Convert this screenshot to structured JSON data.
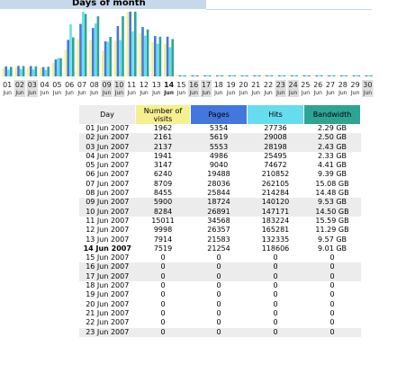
{
  "header": {
    "title": "Days of month"
  },
  "chart_data": {
    "type": "bar",
    "title": "Days of month",
    "series": [
      {
        "name": "Number of visits",
        "color": "#f4f090",
        "values": [
          1962,
          2161,
          2137,
          1941,
          3147,
          6240,
          8709,
          8455,
          5900,
          8284,
          15011,
          9998,
          7914,
          7519,
          0,
          0,
          0,
          0,
          0,
          0,
          0,
          0,
          0,
          0,
          0,
          0,
          0,
          0,
          0,
          0
        ]
      },
      {
        "name": "Pages",
        "color": "#4477dd",
        "values": [
          5354,
          5619,
          5553,
          4986,
          9040,
          19488,
          28036,
          25844,
          18724,
          26891,
          34568,
          26357,
          21583,
          21254,
          0,
          0,
          0,
          0,
          0,
          0,
          0,
          0,
          0,
          0,
          0,
          0,
          0,
          0,
          0,
          0
        ]
      },
      {
        "name": "Hits",
        "color": "#66ddee",
        "values": [
          27736,
          29008,
          28198,
          25495,
          74672,
          210852,
          262105,
          214284,
          140120,
          147171,
          183224,
          165281,
          132335,
          118606,
          0,
          0,
          0,
          0,
          0,
          0,
          0,
          0,
          0,
          0,
          0,
          0,
          0,
          0,
          0,
          0
        ]
      },
      {
        "name": "Bandwidth",
        "color": "#2ea495",
        "values": [
          2.29,
          2.5,
          2.43,
          2.33,
          4.41,
          9.39,
          15.08,
          14.48,
          9.53,
          14.5,
          15.59,
          11.29,
          9.57,
          9.01,
          0,
          0,
          0,
          0,
          0,
          0,
          0,
          0,
          0,
          0,
          0,
          0,
          0,
          0,
          0,
          0
        ]
      }
    ],
    "day_labels": [
      "01",
      "02",
      "03",
      "04",
      "05",
      "06",
      "07",
      "08",
      "09",
      "10",
      "11",
      "12",
      "13",
      "14",
      "15",
      "16",
      "17",
      "18",
      "19",
      "20",
      "21",
      "22",
      "23",
      "24",
      "25",
      "26",
      "27",
      "28",
      "29",
      "30"
    ],
    "month_label": "Jun",
    "weekend_days": [
      2,
      3,
      9,
      10,
      16,
      17,
      23,
      24,
      30
    ],
    "bold_day": 14
  },
  "table": {
    "headers": {
      "day": "Day",
      "visits": "Number of visits",
      "pages": "Pages",
      "hits": "Hits",
      "bandwidth": "Bandwidth"
    },
    "rows": [
      {
        "day": "01 Jun 2007",
        "visits": "1962",
        "pages": "5354",
        "hits": "27736",
        "bandwidth": "2.29 GB"
      },
      {
        "day": "02 Jun 2007",
        "visits": "2161",
        "pages": "5619",
        "hits": "29008",
        "bandwidth": "2.50 GB"
      },
      {
        "day": "03 Jun 2007",
        "visits": "2137",
        "pages": "5553",
        "hits": "28198",
        "bandwidth": "2.43 GB"
      },
      {
        "day": "04 Jun 2007",
        "visits": "1941",
        "pages": "4986",
        "hits": "25495",
        "bandwidth": "2.33 GB"
      },
      {
        "day": "05 Jun 2007",
        "visits": "3147",
        "pages": "9040",
        "hits": "74672",
        "bandwidth": "4.41 GB"
      },
      {
        "day": "06 Jun 2007",
        "visits": "6240",
        "pages": "19488",
        "hits": "210852",
        "bandwidth": "9.39 GB"
      },
      {
        "day": "07 Jun 2007",
        "visits": "8709",
        "pages": "28036",
        "hits": "262105",
        "bandwidth": "15.08 GB"
      },
      {
        "day": "08 Jun 2007",
        "visits": "8455",
        "pages": "25844",
        "hits": "214284",
        "bandwidth": "14.48 GB"
      },
      {
        "day": "09 Jun 2007",
        "visits": "5900",
        "pages": "18724",
        "hits": "140120",
        "bandwidth": "9.53 GB"
      },
      {
        "day": "10 Jun 2007",
        "visits": "8284",
        "pages": "26891",
        "hits": "147171",
        "bandwidth": "14.50 GB"
      },
      {
        "day": "11 Jun 2007",
        "visits": "15011",
        "pages": "34568",
        "hits": "183224",
        "bandwidth": "15.59 GB"
      },
      {
        "day": "12 Jun 2007",
        "visits": "9998",
        "pages": "26357",
        "hits": "165281",
        "bandwidth": "11.29 GB"
      },
      {
        "day": "13 Jun 2007",
        "visits": "7914",
        "pages": "21583",
        "hits": "132335",
        "bandwidth": "9.57 GB"
      },
      {
        "day": "14 Jun 2007",
        "visits": "7519",
        "pages": "21254",
        "hits": "118606",
        "bandwidth": "9.01 GB"
      },
      {
        "day": "15 Jun 2007",
        "visits": "0",
        "pages": "0",
        "hits": "0",
        "bandwidth": "0"
      },
      {
        "day": "16 Jun 2007",
        "visits": "0",
        "pages": "0",
        "hits": "0",
        "bandwidth": "0"
      },
      {
        "day": "17 Jun 2007",
        "visits": "0",
        "pages": "0",
        "hits": "0",
        "bandwidth": "0"
      },
      {
        "day": "18 Jun 2007",
        "visits": "0",
        "pages": "0",
        "hits": "0",
        "bandwidth": "0"
      },
      {
        "day": "19 Jun 2007",
        "visits": "0",
        "pages": "0",
        "hits": "0",
        "bandwidth": "0"
      },
      {
        "day": "20 Jun 2007",
        "visits": "0",
        "pages": "0",
        "hits": "0",
        "bandwidth": "0"
      },
      {
        "day": "21 Jun 2007",
        "visits": "0",
        "pages": "0",
        "hits": "0",
        "bandwidth": "0"
      },
      {
        "day": "22 Jun 2007",
        "visits": "0",
        "pages": "0",
        "hits": "0",
        "bandwidth": "0"
      },
      {
        "day": "23 Jun 2007",
        "visits": "0",
        "pages": "0",
        "hits": "0",
        "bandwidth": "0"
      }
    ]
  }
}
